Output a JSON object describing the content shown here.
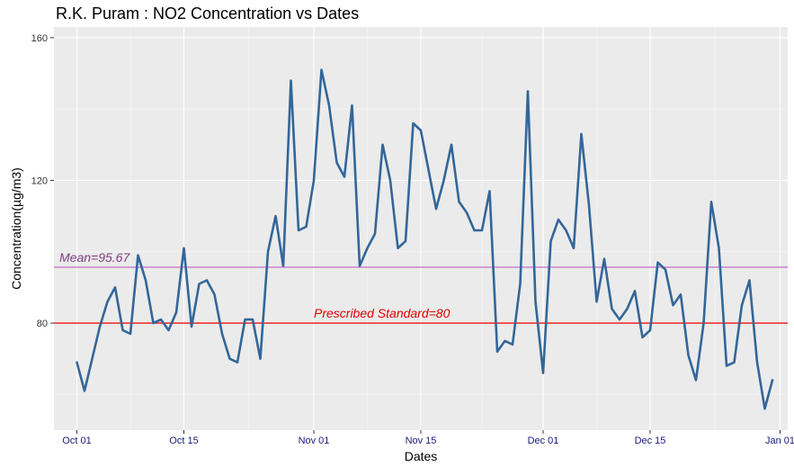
{
  "chart_data": {
    "type": "line",
    "title": "R.K. Puram : NO2 Concentration vs Dates",
    "xlabel": "Dates",
    "ylabel": "Concentration(µg/m3)",
    "xlim": [
      "2018-09-28",
      "2019-01-02"
    ],
    "ylim": [
      50,
      163
    ],
    "grid": true,
    "x_ticks": [
      {
        "date": "2018-10-01",
        "label": "Oct 01"
      },
      {
        "date": "2018-10-15",
        "label": "Oct 15"
      },
      {
        "date": "2018-11-01",
        "label": "Nov 01"
      },
      {
        "date": "2018-11-15",
        "label": "Nov 15"
      },
      {
        "date": "2018-12-01",
        "label": "Dec 01"
      },
      {
        "date": "2018-12-15",
        "label": "Dec 15"
      },
      {
        "date": "2019-01-01",
        "label": "Jan 01"
      }
    ],
    "y_ticks": [
      80,
      120,
      160
    ],
    "series": [
      {
        "color": "#336699",
        "x": [
          "2018-10-01",
          "2018-10-02",
          "2018-10-03",
          "2018-10-04",
          "2018-10-05",
          "2018-10-06",
          "2018-10-07",
          "2018-10-08",
          "2018-10-09",
          "2018-10-10",
          "2018-10-11",
          "2018-10-12",
          "2018-10-13",
          "2018-10-14",
          "2018-10-15",
          "2018-10-16",
          "2018-10-17",
          "2018-10-18",
          "2018-10-19",
          "2018-10-20",
          "2018-10-21",
          "2018-10-22",
          "2018-10-23",
          "2018-10-24",
          "2018-10-25",
          "2018-10-26",
          "2018-10-27",
          "2018-10-28",
          "2018-10-29",
          "2018-10-30",
          "2018-10-31",
          "2018-11-01",
          "2018-11-02",
          "2018-11-03",
          "2018-11-04",
          "2018-11-05",
          "2018-11-06",
          "2018-11-07",
          "2018-11-08",
          "2018-11-09",
          "2018-11-10",
          "2018-11-11",
          "2018-11-12",
          "2018-11-13",
          "2018-11-14",
          "2018-11-15",
          "2018-11-16",
          "2018-11-17",
          "2018-11-18",
          "2018-11-19",
          "2018-11-20",
          "2018-11-21",
          "2018-11-22",
          "2018-11-23",
          "2018-11-24",
          "2018-11-25",
          "2018-11-26",
          "2018-11-27",
          "2018-11-28",
          "2018-11-29",
          "2018-11-30",
          "2018-12-01",
          "2018-12-02",
          "2018-12-03",
          "2018-12-04",
          "2018-12-05",
          "2018-12-06",
          "2018-12-07",
          "2018-12-08",
          "2018-12-09",
          "2018-12-10",
          "2018-12-11",
          "2018-12-12",
          "2018-12-13",
          "2018-12-14",
          "2018-12-15",
          "2018-12-16",
          "2018-12-17",
          "2018-12-18",
          "2018-12-19",
          "2018-12-20",
          "2018-12-21",
          "2018-12-22",
          "2018-12-23",
          "2018-12-24",
          "2018-12-25",
          "2018-12-26",
          "2018-12-27",
          "2018-12-28",
          "2018-12-29",
          "2018-12-30",
          "2018-12-31"
        ],
        "y": [
          69,
          61,
          70,
          79,
          86,
          90,
          78,
          77,
          99,
          92,
          80,
          81,
          78,
          83,
          101,
          79,
          91,
          92,
          88,
          77,
          70,
          69,
          81,
          81,
          70,
          100,
          110,
          96,
          148,
          106,
          107,
          120,
          151,
          141,
          125,
          121,
          141,
          96,
          101,
          105,
          130,
          120,
          101,
          103,
          136,
          134,
          123,
          112,
          120,
          130,
          114,
          111,
          106,
          106,
          117,
          72,
          75,
          74,
          91,
          145,
          86,
          66,
          103,
          109,
          106,
          101,
          133,
          113,
          86,
          98,
          84,
          81,
          84,
          89,
          76,
          78,
          97,
          95,
          85,
          88,
          71,
          64,
          80,
          114,
          101,
          68,
          69,
          85,
          92,
          69,
          56,
          64
        ]
      }
    ],
    "reference_lines": [
      {
        "value": 95.67,
        "label": "Mean=95.67",
        "color": "#cc77cc",
        "label_color": "#7f3f7f",
        "label_date": "2018-09-28"
      },
      {
        "value": 80,
        "label": "Prescribed Standard=80",
        "color": "#ee1111",
        "label_color": "#e00000",
        "label_date": "2018-11-01"
      }
    ]
  }
}
